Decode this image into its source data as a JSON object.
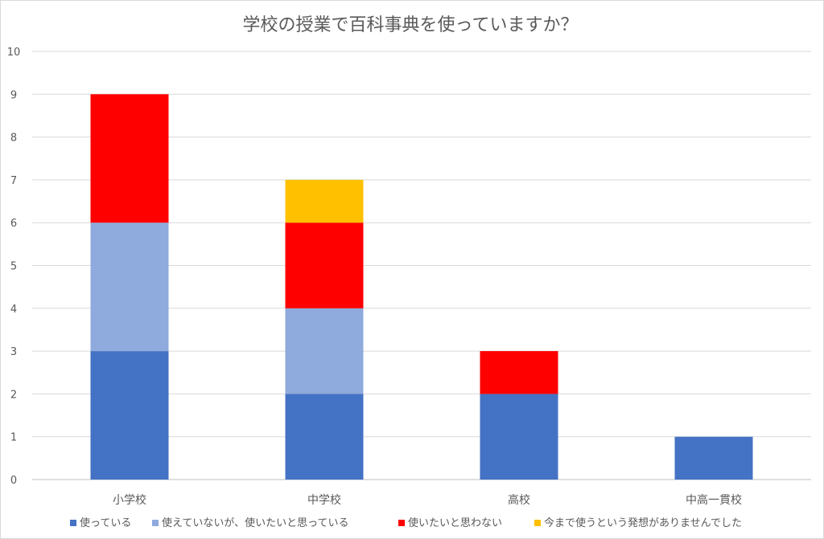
{
  "chart_data": {
    "type": "bar",
    "stacked": true,
    "title": "学校の授業で百科事典を使っていますか？",
    "categories": [
      "小学校",
      "中学校",
      "高校",
      "中高一貫校"
    ],
    "ylim": [
      0,
      10
    ],
    "yticks": [
      0,
      1,
      2,
      3,
      4,
      5,
      6,
      7,
      8,
      9,
      10
    ],
    "grid": true,
    "legend_position": "bottom",
    "series": [
      {
        "name": "使っている",
        "color": "#4472C4",
        "values": [
          3,
          2,
          2,
          1
        ]
      },
      {
        "name": "使えていないが、使いたいと思っている",
        "color": "#8FAADC",
        "values": [
          3,
          2,
          0,
          0
        ]
      },
      {
        "name": "使いたいと思わない",
        "color": "#FF0000",
        "values": [
          3,
          2,
          1,
          0
        ]
      },
      {
        "name": "今まで使うという発想がありませんでした",
        "color": "#FFC000",
        "values": [
          0,
          1,
          0,
          0
        ]
      }
    ]
  }
}
